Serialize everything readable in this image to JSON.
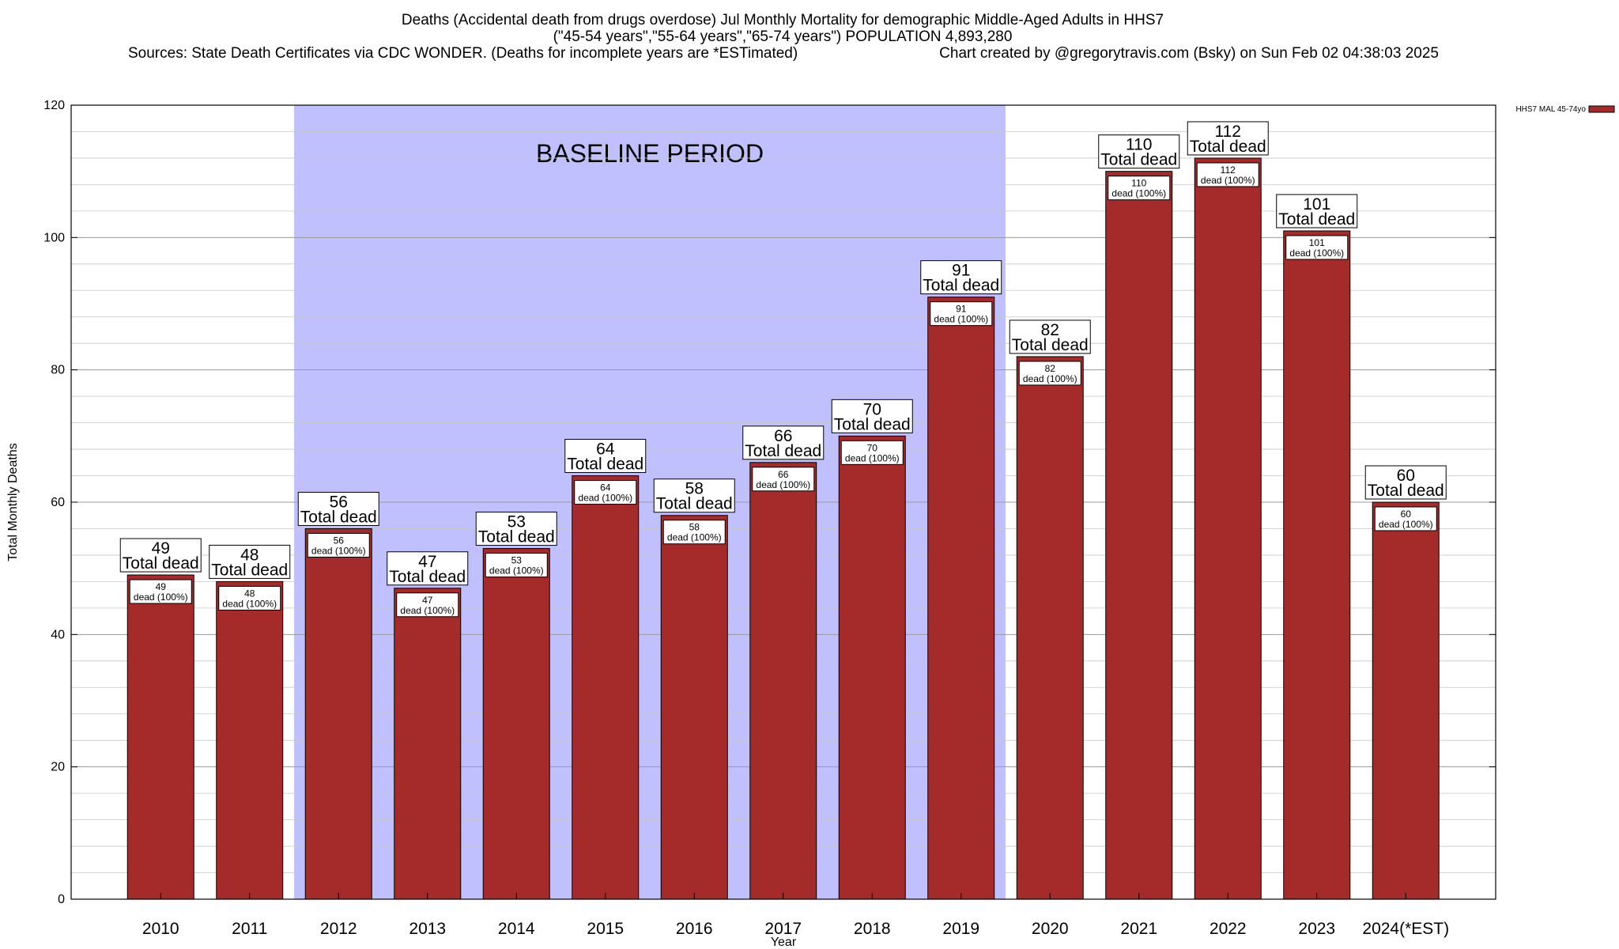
{
  "chart_data": {
    "type": "bar",
    "title_lines": [
      "Deaths (Accidental death from drugs overdose) Jul Monthly Mortality for demographic Middle-Aged Adults in HHS7",
      "(\"45-54 years\",\"55-64 years\",\"65-74 years\") POPULATION 4,893,280",
      "Sources: State Death Certificates via CDC WONDER. (Deaths for incomplete years are *ESTimated)",
      "Chart created by @gregorytravis.com (Bsky) on Sun Feb 02 04:38:03 2025"
    ],
    "xlabel": "Year",
    "ylabel": "Total Monthly Deaths",
    "ylim": [
      0,
      120
    ],
    "yticks": [
      0,
      20,
      40,
      60,
      80,
      100,
      120
    ],
    "grid": true,
    "categories": [
      "2010",
      "2011",
      "2012",
      "2013",
      "2014",
      "2015",
      "2016",
      "2017",
      "2018",
      "2019",
      "2020",
      "2021",
      "2022",
      "2023",
      "2024(*EST)"
    ],
    "series": [
      {
        "name": "HHS7 MAL 45-74yo",
        "color": "#a52a2a",
        "values": [
          49,
          48,
          56,
          47,
          53,
          64,
          58,
          66,
          70,
          91,
          82,
          110,
          112,
          101,
          60
        ]
      }
    ],
    "top_label_suffix": "Total dead",
    "inner_label_suffix": "dead (100%)",
    "baseline_band": {
      "label": "BASELINE PERIOD",
      "from": "2012",
      "to": "2019",
      "color": "#c0c0ff"
    },
    "legend_position": "top-right"
  }
}
